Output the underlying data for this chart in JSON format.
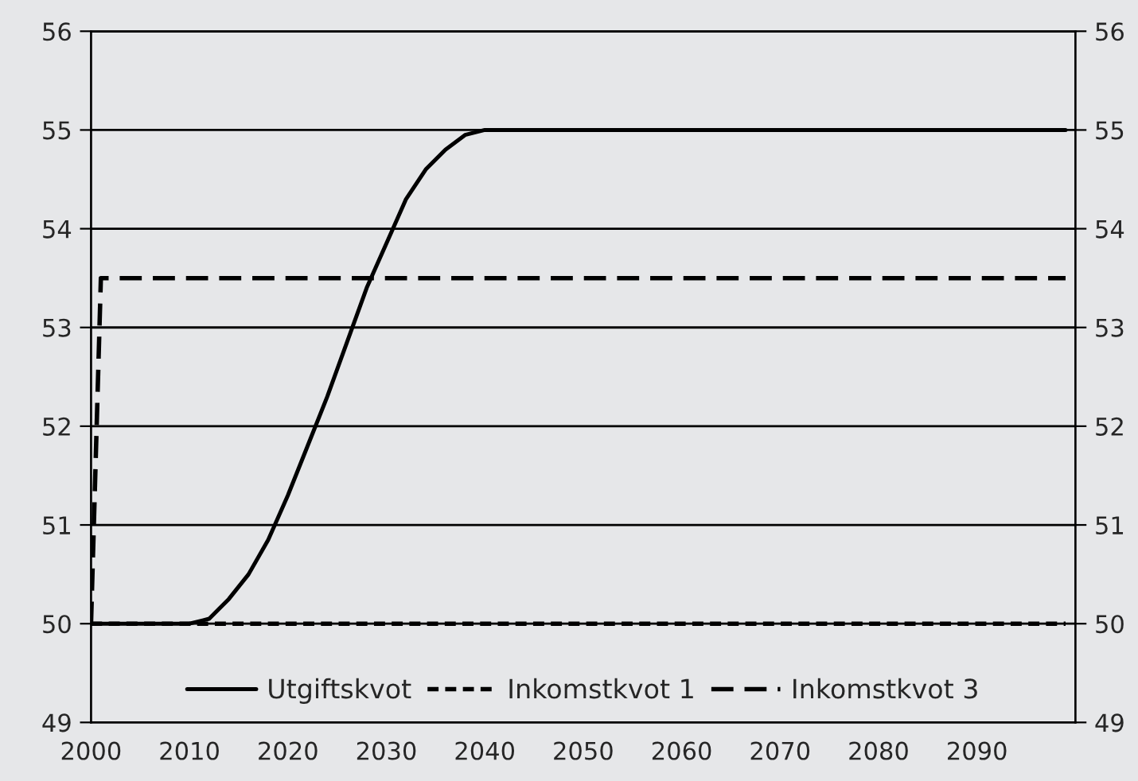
{
  "chart_data": {
    "type": "line",
    "xlim": [
      2000,
      2100
    ],
    "xticks": [
      2000,
      2010,
      2020,
      2030,
      2040,
      2050,
      2060,
      2070,
      2080,
      2090
    ],
    "ylim": [
      49,
      56
    ],
    "yticks": [
      49,
      50,
      51,
      52,
      53,
      54,
      55,
      56
    ],
    "y2lim": [
      49,
      56
    ],
    "y2ticks": [
      49,
      50,
      51,
      52,
      53,
      54,
      55,
      56
    ],
    "grid": "y",
    "legend": "bottom",
    "marker": "none",
    "series": [
      {
        "name": "Utgiftskvot",
        "color": "#000000",
        "line_style": "solid",
        "x": [
          2000,
          2010,
          2012,
          2014,
          2016,
          2018,
          2020,
          2022,
          2024,
          2026,
          2028,
          2030,
          2032,
          2034,
          2036,
          2038,
          2040,
          2099
        ],
        "values": [
          50,
          50,
          50.05,
          50.25,
          50.5,
          50.85,
          51.3,
          51.8,
          52.3,
          52.85,
          53.4,
          53.85,
          54.3,
          54.6,
          54.8,
          54.95,
          55,
          55
        ]
      },
      {
        "name": "Inkomstkvot 1",
        "color": "#000000",
        "line_style": "dotted",
        "x": [
          2000,
          2099
        ],
        "values": [
          50,
          50
        ]
      },
      {
        "name": "Inkomstkvot 3",
        "color": "#000000",
        "line_style": "dashed",
        "x": [
          2000,
          2001,
          2099
        ],
        "values": [
          50,
          53.5,
          53.5
        ]
      }
    ]
  }
}
